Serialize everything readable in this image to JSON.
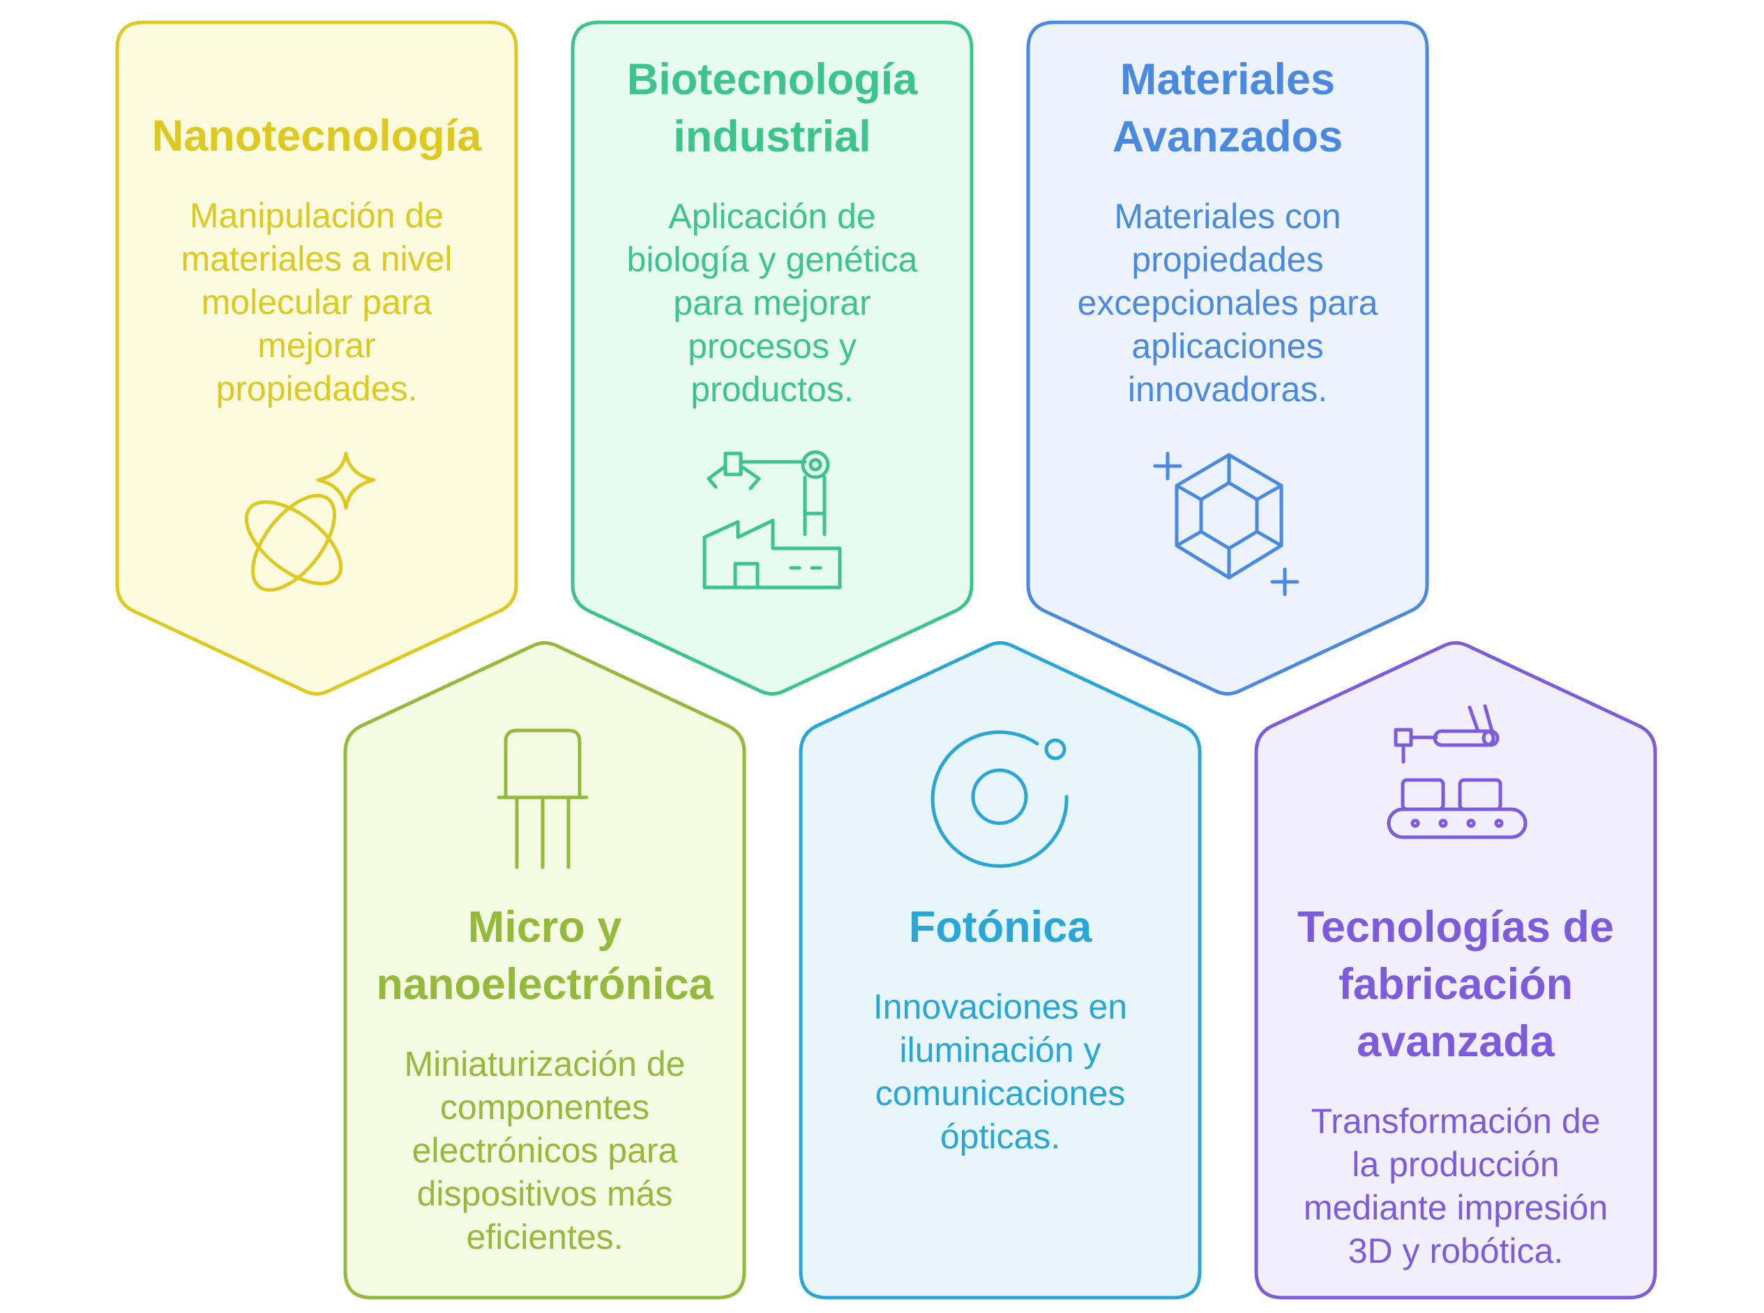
{
  "cards": [
    {
      "id": "nanotecnologia",
      "title_lines": [
        "Nanotecnología"
      ],
      "desc_lines": [
        "Manipulación de",
        "materiales a nivel",
        "molecular para",
        "mejorar",
        "propiedades."
      ],
      "color": "#DEC921",
      "fill": "#FCFBE0",
      "icon": "atom-sparkle-icon"
    },
    {
      "id": "biotecnologia",
      "title_lines": [
        "Biotecnología",
        "industrial"
      ],
      "desc_lines": [
        "Aplicación de",
        "biología y genética",
        "para mejorar",
        "procesos y",
        "productos."
      ],
      "color": "#3BC58A",
      "fill": "#E8FBF1",
      "icon": "factory-robot-arm-icon"
    },
    {
      "id": "materiales",
      "title_lines": [
        "Materiales",
        "Avanzados"
      ],
      "desc_lines": [
        "Materiales con",
        "propiedades",
        "excepcionales para",
        "aplicaciones",
        "innovadoras."
      ],
      "color": "#4A89E0",
      "fill": "#EDF3FC",
      "icon": "gem-icon"
    },
    {
      "id": "micro",
      "title_lines": [
        "Micro y",
        "nanoelectrónica"
      ],
      "desc_lines": [
        "Miniaturización de",
        "componentes",
        "electrónicos para",
        "dispositivos más",
        "eficientes."
      ],
      "color": "#93BA3A",
      "fill": "#F4FBE2",
      "icon": "transistor-icon"
    },
    {
      "id": "fotonica",
      "title_lines": [
        "Fotónica"
      ],
      "desc_lines": [
        "Innovaciones en",
        "iluminación y",
        "comunicaciones",
        "ópticas."
      ],
      "color": "#28A6D6",
      "fill": "#E8F6FC",
      "icon": "lens-icon"
    },
    {
      "id": "fabricacion",
      "title_lines": [
        "Tecnologías de",
        "fabricación",
        "avanzada"
      ],
      "desc_lines": [
        "Transformación de",
        "la producción",
        "mediante impresión",
        "3D y robótica."
      ],
      "color": "#7C5BDD",
      "fill": "#F1EFFC",
      "icon": "conveyor-robot-icon"
    }
  ]
}
